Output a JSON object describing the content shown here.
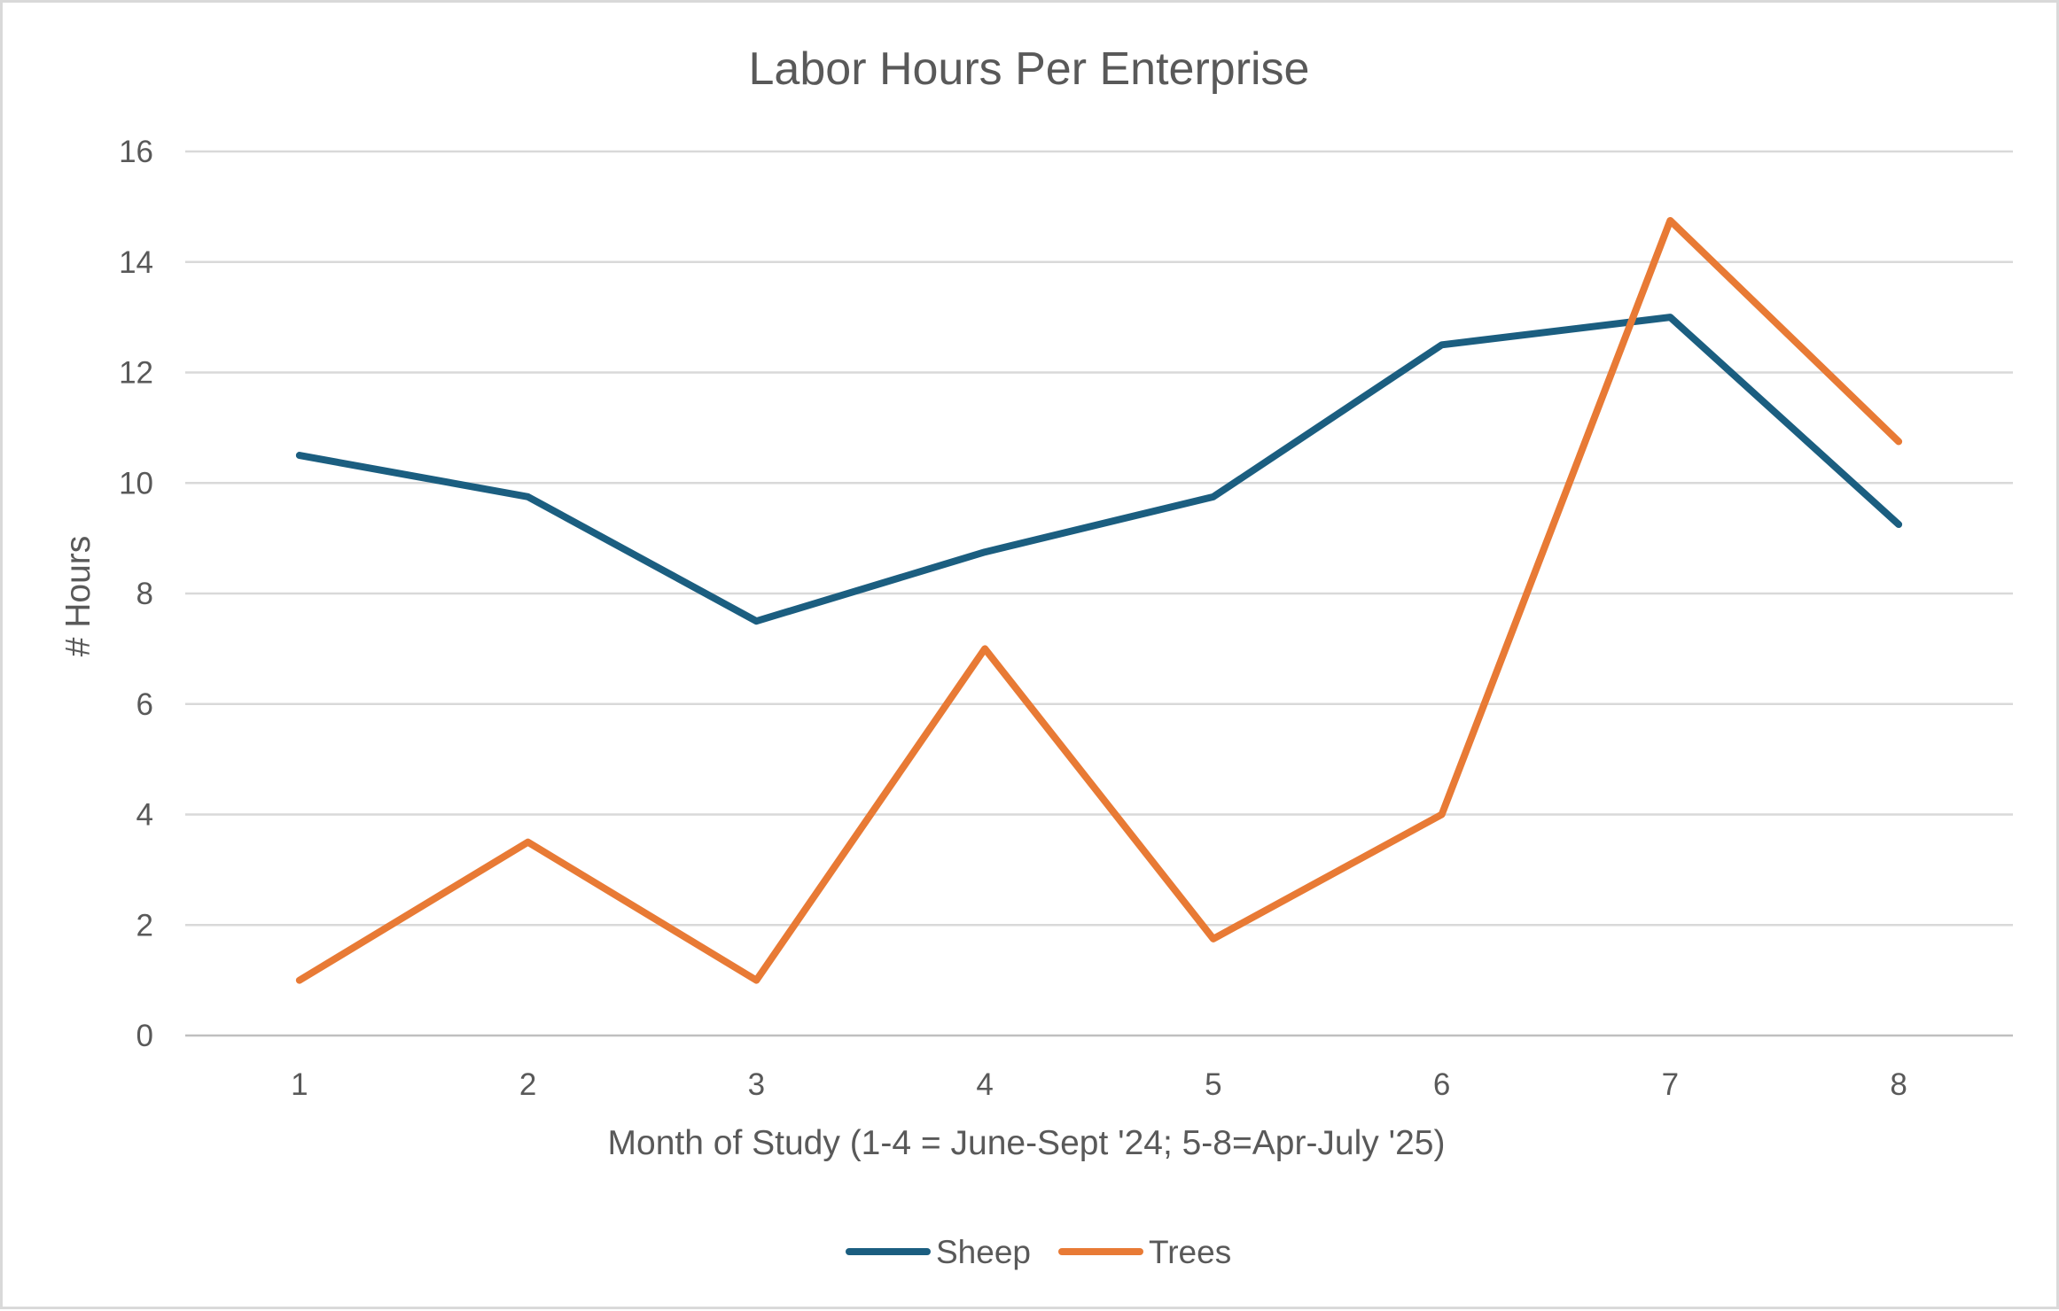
{
  "chart_data": {
    "type": "line",
    "title": "Labor Hours Per Enterprise",
    "xlabel": "Month of Study (1-4 = June-Sept '24; 5-8=Apr-July '25)",
    "ylabel": "# Hours",
    "categories": [
      "1",
      "2",
      "3",
      "4",
      "5",
      "6",
      "7",
      "8"
    ],
    "ylim": [
      0,
      16
    ],
    "yticks": [
      "0",
      "2",
      "4",
      "6",
      "8",
      "10",
      "12",
      "14",
      "16"
    ],
    "grid": true,
    "legend_position": "bottom",
    "series": [
      {
        "name": "Sheep",
        "color": "#1b5e80",
        "values": [
          10.5,
          9.75,
          7.5,
          8.75,
          9.75,
          12.5,
          13,
          9.25
        ]
      },
      {
        "name": "Trees",
        "color": "#e87a35",
        "values": [
          1,
          3.5,
          1,
          7,
          1.75,
          4,
          14.75,
          10.75
        ]
      }
    ]
  }
}
